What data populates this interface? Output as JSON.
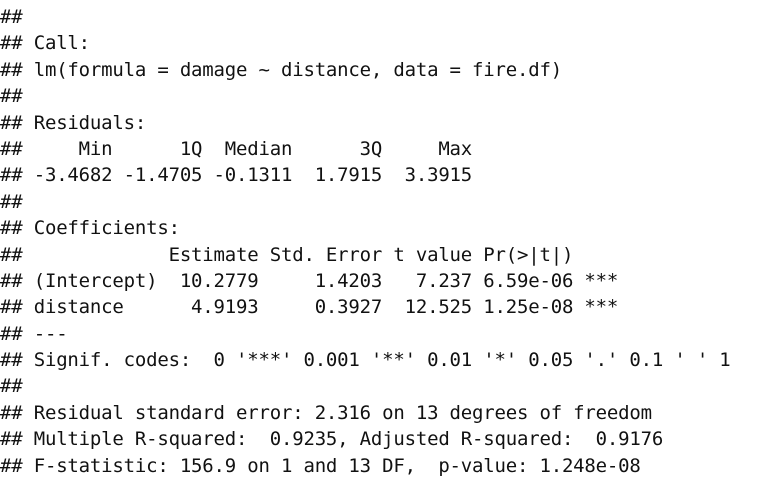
{
  "output": {
    "lines": [
      "##",
      "## Call:",
      "## lm(formula = damage ~ distance, data = fire.df)",
      "##",
      "## Residuals:",
      "##     Min      1Q  Median      3Q     Max",
      "## -3.4682 -1.4705 -0.1311  1.7915  3.3915",
      "##",
      "## Coefficients:",
      "##             Estimate Std. Error t value Pr(>|t|)",
      "## (Intercept)  10.2779     1.4203   7.237 6.59e-06 ***",
      "## distance      4.9193     0.3927  12.525 1.25e-08 ***",
      "## ---",
      "## Signif. codes:  0 '***' 0.001 '**' 0.01 '*' 0.05 '.' 0.1 ' ' 1",
      "##",
      "## Residual standard error: 2.316 on 13 degrees of freedom",
      "## Multiple R-squared:  0.9235, Adjusted R-squared:  0.9176",
      "## F-statistic: 156.9 on 1 and 13 DF,  p-value: 1.248e-08"
    ]
  }
}
